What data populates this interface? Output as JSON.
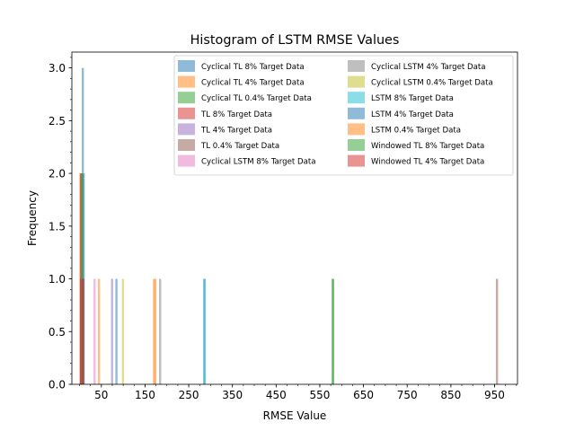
{
  "chart_data": {
    "type": "bar",
    "title": "Histogram of LSTM RMSE Values",
    "xlabel": "RMSE Value",
    "ylabel": "Frequency",
    "xlim": [
      -17.5,
      1002.5
    ],
    "ylim": [
      0,
      3.15
    ],
    "xticks": [
      "50",
      "150",
      "250",
      "350",
      "450",
      "550",
      "650",
      "750",
      "850",
      "950"
    ],
    "xtick_values": [
      50,
      150,
      250,
      350,
      450,
      550,
      650,
      750,
      850,
      950
    ],
    "yticks": [
      "0.0",
      "0.5",
      "1.0",
      "1.5",
      "2.0",
      "2.5",
      "3.0"
    ],
    "ytick_values": [
      0,
      0.5,
      1.0,
      1.5,
      2.0,
      2.5,
      3.0
    ],
    "bar_width": 5,
    "legend_position": "upper-right",
    "legend_columns": 2,
    "series": [
      {
        "name": "Cyclical TL 8% Target Data",
        "color": "#1f77b4",
        "bars": [
          {
            "x": 5,
            "y": 3
          },
          {
            "x": 283,
            "y": 1
          }
        ]
      },
      {
        "name": "Cyclical TL 4% Target Data",
        "color": "#ff7f0e",
        "bars": [
          {
            "x": 1,
            "y": 2
          },
          {
            "x": 168,
            "y": 1
          }
        ]
      },
      {
        "name": "Cyclical TL 0.4% Target Data",
        "color": "#2ca02c",
        "bars": [
          {
            "x": 2,
            "y": 2
          },
          {
            "x": 577,
            "y": 1
          }
        ]
      },
      {
        "name": "TL 8% Target Data",
        "color": "#d62728",
        "bars": [
          {
            "x": 0,
            "y": 2
          },
          {
            "x": 4,
            "y": 1
          }
        ]
      },
      {
        "name": "TL 4% Target Data",
        "color": "#9467bd",
        "bars": [
          {
            "x": 3,
            "y": 1
          },
          {
            "x": 72,
            "y": 1
          }
        ]
      },
      {
        "name": "TL 0.4% Target Data",
        "color": "#8c564b",
        "bars": [
          {
            "x": 1,
            "y": 1
          },
          {
            "x": 953,
            "y": 1
          }
        ]
      },
      {
        "name": "Cyclical LSTM 8% Target Data",
        "color": "#e377c2",
        "bars": [
          {
            "x": 6,
            "y": 1
          },
          {
            "x": 32,
            "y": 1
          }
        ]
      },
      {
        "name": "Cyclical LSTM 4% Target Data",
        "color": "#7f7f7f",
        "bars": [
          {
            "x": 4,
            "y": 1
          },
          {
            "x": 182,
            "y": 1
          }
        ]
      },
      {
        "name": "Cyclical LSTM 0.4% Target Data",
        "color": "#bcbd22",
        "bars": [
          {
            "x": 3,
            "y": 1
          },
          {
            "x": 97,
            "y": 1
          }
        ]
      },
      {
        "name": "LSTM 8% Target Data",
        "color": "#17becf",
        "bars": [
          {
            "x": 5,
            "y": 1
          },
          {
            "x": 284,
            "y": 1
          }
        ]
      },
      {
        "name": "LSTM 4% Target Data",
        "color": "#1f77b4",
        "bars": [
          {
            "x": 7,
            "y": 2
          },
          {
            "x": 82,
            "y": 1
          }
        ]
      },
      {
        "name": "LSTM 0.4% Target Data",
        "color": "#ff7f0e",
        "bars": [
          {
            "x": 42,
            "y": 1
          },
          {
            "x": 171,
            "y": 1
          }
        ]
      },
      {
        "name": "Windowed TL 8% Target Data",
        "color": "#2ca02c",
        "bars": [
          {
            "x": 4,
            "y": 2
          },
          {
            "x": 578,
            "y": 1
          }
        ]
      },
      {
        "name": "Windowed TL 4% Target Data",
        "color": "#d62728",
        "bars": [
          {
            "x": 2,
            "y": 1
          },
          {
            "x": 6,
            "y": 1
          }
        ]
      }
    ]
  }
}
